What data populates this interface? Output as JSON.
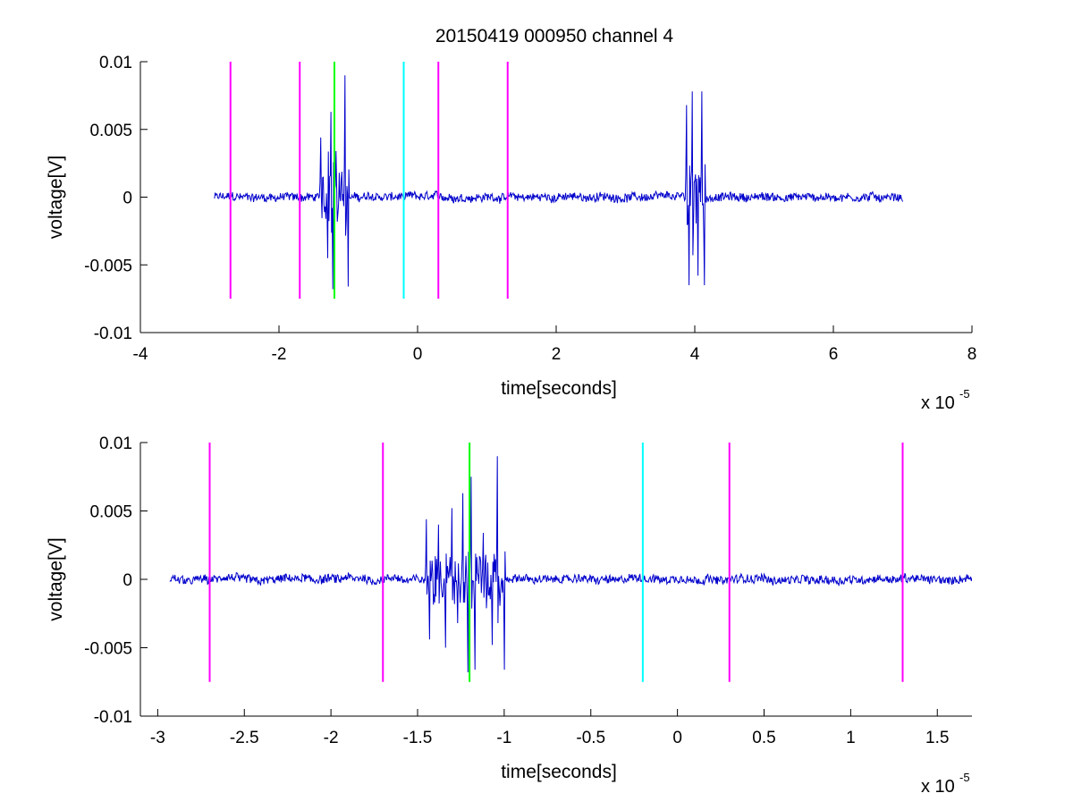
{
  "figure": {
    "title": "20150419 000950 channel 4"
  },
  "chart_data": [
    {
      "type": "line",
      "title": "20150419 000950 channel 4",
      "xlabel": "time[seconds]",
      "ylabel": "voltage[V]",
      "x_exponent_base": "x 10",
      "x_exponent_power": "-5",
      "xlim": [
        -4,
        8
      ],
      "ylim": [
        -0.01,
        0.01
      ],
      "xticks": [
        -4,
        -2,
        0,
        2,
        4,
        6,
        8
      ],
      "xtick_labels": [
        "-4",
        "-2",
        "0",
        "2",
        "4",
        "6",
        "8"
      ],
      "yticks": [
        -0.01,
        -0.005,
        0,
        0.005,
        0.01
      ],
      "ytick_labels": [
        "-0.01",
        "-0.005",
        "0",
        "0.005",
        "0.01"
      ],
      "grid": false,
      "signal": {
        "color": "#0000cc",
        "x_range": [
          -2.93,
          7.0
        ],
        "bursts": [
          {
            "x": [
              -1.4,
              -1.3,
              -1.25,
              -1.22,
              -1.18,
              -1.12,
              -1.05,
              -1.0
            ],
            "y": [
              0.0044,
              -0.0045,
              0.0063,
              -0.0068,
              0.0034,
              0.0,
              0.009,
              -0.0066
            ]
          },
          {
            "x": [
              3.88,
              3.92,
              3.96,
              4.05,
              4.1,
              4.14
            ],
            "y": [
              0.0068,
              -0.0065,
              0.0078,
              -0.0058,
              0.0078,
              -0.0065
            ]
          }
        ]
      },
      "markers": [
        {
          "x": -2.7,
          "color": "#ff00ff"
        },
        {
          "x": -1.7,
          "color": "#ff00ff"
        },
        {
          "x": -1.2,
          "color": "#00ff00"
        },
        {
          "x": -0.2,
          "color": "#00ffff"
        },
        {
          "x": 0.3,
          "color": "#ff00ff"
        },
        {
          "x": 1.3,
          "color": "#ff00ff"
        }
      ],
      "marker_y_range": [
        -0.0075,
        0.01
      ]
    },
    {
      "type": "line",
      "xlabel": "time[seconds]",
      "ylabel": "voltage[V]",
      "x_exponent_base": "x 10",
      "x_exponent_power": "-5",
      "xlim": [
        -3.1,
        1.7
      ],
      "ylim": [
        -0.01,
        0.01
      ],
      "xticks": [
        -3,
        -2.5,
        -2,
        -1.5,
        -1,
        -0.5,
        0,
        0.5,
        1,
        1.5
      ],
      "xtick_labels": [
        "-3",
        "-2.5",
        "-2",
        "-1.5",
        "-1",
        "-0.5",
        "0",
        "0.5",
        "1",
        "1.5"
      ],
      "yticks": [
        -0.01,
        -0.005,
        0,
        0.005,
        0.01
      ],
      "ytick_labels": [
        "-0.01",
        "-0.005",
        "0",
        "0.005",
        "0.01"
      ],
      "grid": false,
      "signal": {
        "color": "#0000cc",
        "x_range": [
          -2.93,
          1.7
        ],
        "bursts": [
          {
            "x": [
              -1.45,
              -1.43,
              -1.38,
              -1.34,
              -1.3,
              -1.27,
              -1.24,
              -1.21,
              -1.19,
              -1.17,
              -1.12,
              -1.07,
              -1.04,
              -1.0
            ],
            "y": [
              0.0044,
              -0.0044,
              0.004,
              -0.005,
              0.0052,
              -0.0032,
              0.0063,
              -0.0068,
              0.0075,
              -0.0066,
              0.0034,
              -0.0048,
              0.009,
              -0.0066
            ]
          }
        ]
      },
      "markers": [
        {
          "x": -2.7,
          "color": "#ff00ff"
        },
        {
          "x": -1.7,
          "color": "#ff00ff"
        },
        {
          "x": -1.2,
          "color": "#00ff00"
        },
        {
          "x": -0.2,
          "color": "#00ffff"
        },
        {
          "x": 0.3,
          "color": "#ff00ff"
        },
        {
          "x": 1.3,
          "color": "#ff00ff"
        }
      ],
      "marker_y_range": [
        -0.0075,
        0.01
      ]
    }
  ]
}
